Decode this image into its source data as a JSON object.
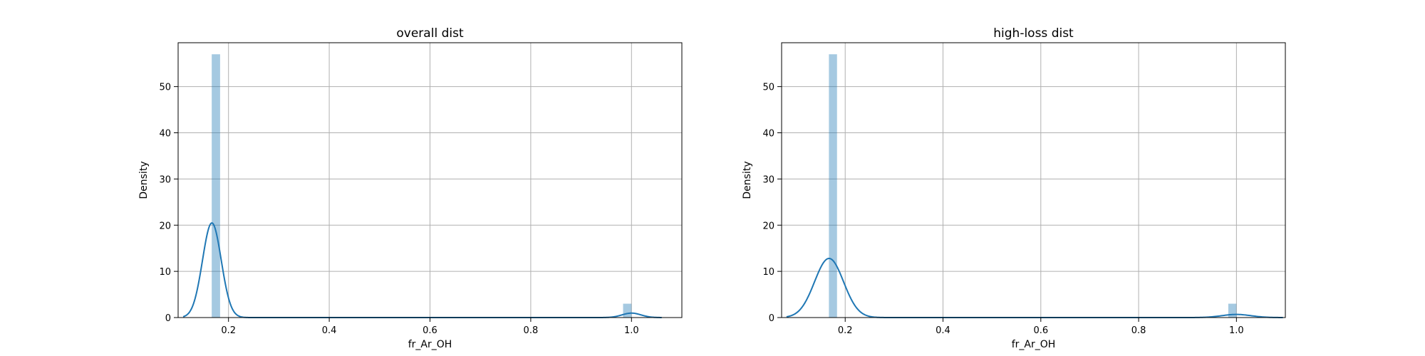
{
  "chart_data": [
    {
      "type": "histogram",
      "title": "overall dist",
      "xlabel": "fr_Ar_OH",
      "ylabel": "Density",
      "xlim": [
        0.1,
        1.1
      ],
      "ylim": [
        0,
        59.5
      ],
      "xticks": [
        0.2,
        0.4,
        0.6,
        0.8,
        1.0
      ],
      "xtick_labels": [
        "0.2",
        "0.4",
        "0.6",
        "0.8",
        "1.0"
      ],
      "yticks": [
        0,
        10,
        20,
        30,
        40,
        50
      ],
      "ytick_labels": [
        "0",
        "10",
        "20",
        "30",
        "40",
        "50"
      ],
      "grid": true,
      "bars": [
        {
          "x0": 0.1667,
          "x1": 0.1833,
          "density": 57.0
        },
        {
          "x0": 0.9833,
          "x1": 1.0,
          "density": 3.0
        }
      ],
      "kde": {
        "x_range": [
          0.11,
          1.06
        ],
        "components": [
          {
            "mean": 0.167,
            "sd": 0.0186,
            "weight": 0.955
          },
          {
            "mean": 1.0,
            "sd": 0.0186,
            "weight": 0.045
          }
        ]
      }
    },
    {
      "type": "histogram",
      "title": "high-loss dist",
      "xlabel": "fr_Ar_OH",
      "ylabel": "Density",
      "xlim": [
        0.07,
        1.1
      ],
      "ylim": [
        0,
        59.5
      ],
      "xticks": [
        0.2,
        0.4,
        0.6,
        0.8,
        1.0
      ],
      "xtick_labels": [
        "0.2",
        "0.4",
        "0.6",
        "0.8",
        "1.0"
      ],
      "yticks": [
        0,
        10,
        20,
        30,
        40,
        50
      ],
      "ytick_labels": [
        "0",
        "10",
        "20",
        "30",
        "40",
        "50"
      ],
      "grid": true,
      "bars": [
        {
          "x0": 0.1667,
          "x1": 0.1833,
          "density": 57.0
        },
        {
          "x0": 0.9833,
          "x1": 1.0,
          "density": 3.0
        }
      ],
      "kde": {
        "x_range": [
          0.08,
          1.095
        ],
        "components": [
          {
            "mean": 0.167,
            "sd": 0.0296,
            "weight": 0.95
          },
          {
            "mean": 1.0,
            "sd": 0.0296,
            "weight": 0.05
          }
        ]
      }
    }
  ]
}
